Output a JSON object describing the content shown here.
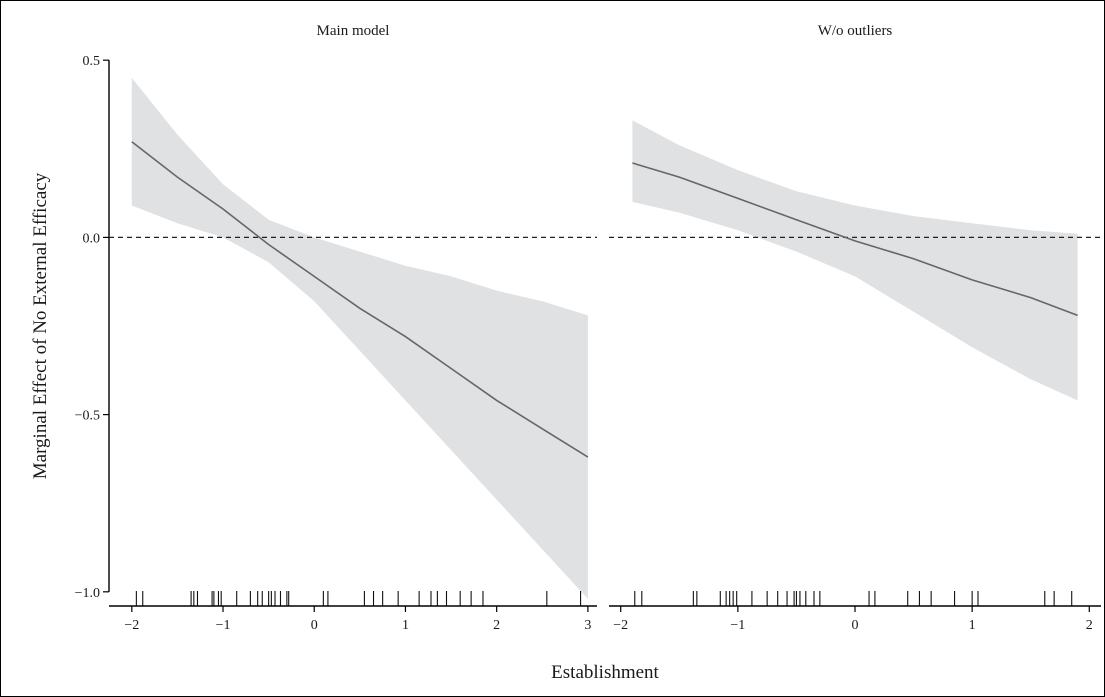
{
  "chart_data": {
    "type": "line",
    "xlabel": "Establishment",
    "ylabel": "Marginal Effect of No External Efficacy",
    "y_ticks": [
      0.5,
      0.0,
      -0.5,
      -1.0
    ],
    "y_tick_labels": [
      "0.5",
      "0.0",
      "−0.5",
      "−1.0"
    ],
    "ylim": [
      -1.04,
      0.54
    ],
    "reference_line": {
      "y": 0,
      "style": "dashed"
    },
    "colors": {
      "ribbon": "#e0e1e3",
      "line": "#666666",
      "axis": "#000000"
    },
    "panels": [
      {
        "title": "Main model",
        "xlim": [
          -2.25,
          3.1
        ],
        "x_ticks": [
          -2,
          -1,
          0,
          1,
          2,
          3
        ],
        "x_tick_labels": [
          "−2",
          "−1",
          "0",
          "1",
          "2",
          "3"
        ],
        "series": [
          {
            "x": [
              -2.0,
              -1.5,
              -1.0,
              -0.5,
              0.0,
              0.5,
              1.0,
              1.5,
              2.0,
              2.5,
              3.0
            ],
            "y": [
              0.27,
              0.17,
              0.08,
              -0.02,
              -0.11,
              -0.2,
              -0.28,
              -0.37,
              -0.46,
              -0.54,
              -0.62
            ],
            "lower": [
              0.09,
              0.04,
              0.0,
              -0.07,
              -0.18,
              -0.32,
              -0.46,
              -0.6,
              -0.74,
              -0.88,
              -1.02
            ],
            "upper": [
              0.45,
              0.29,
              0.15,
              0.05,
              0.0,
              -0.04,
              -0.08,
              -0.11,
              -0.15,
              -0.18,
              -0.22
            ]
          }
        ],
        "rug": [
          -1.95,
          -1.88,
          -1.35,
          -1.32,
          -1.28,
          -1.12,
          -1.1,
          -1.05,
          -1.02,
          -0.85,
          -0.7,
          -0.62,
          -0.57,
          -0.5,
          -0.47,
          -0.43,
          -0.37,
          -0.3,
          -0.28,
          0.1,
          0.15,
          0.55,
          0.65,
          0.75,
          0.92,
          1.15,
          1.28,
          1.35,
          1.45,
          1.6,
          1.72,
          1.85,
          2.55,
          2.92
        ]
      },
      {
        "title": "W/o outliers",
        "xlim": [
          -2.1,
          2.1
        ],
        "x_ticks": [
          -2,
          -1,
          0,
          1,
          2
        ],
        "x_tick_labels": [
          "−2",
          "−1",
          "0",
          "1",
          "2"
        ],
        "series": [
          {
            "x": [
              -1.9,
              -1.5,
              -1.0,
              -0.5,
              0.0,
              0.5,
              1.0,
              1.5,
              1.9
            ],
            "y": [
              0.21,
              0.17,
              0.11,
              0.05,
              -0.01,
              -0.06,
              -0.12,
              -0.17,
              -0.22
            ],
            "lower": [
              0.1,
              0.07,
              0.02,
              -0.04,
              -0.11,
              -0.21,
              -0.31,
              -0.4,
              -0.46
            ],
            "upper": [
              0.33,
              0.26,
              0.19,
              0.13,
              0.09,
              0.06,
              0.04,
              0.02,
              0.01
            ]
          }
        ],
        "rug": [
          -1.88,
          -1.82,
          -1.38,
          -1.35,
          -1.15,
          -1.1,
          -1.07,
          -1.04,
          -1.01,
          -0.88,
          -0.75,
          -0.66,
          -0.58,
          -0.52,
          -0.5,
          -0.47,
          -0.42,
          -0.35,
          -0.3,
          0.12,
          0.17,
          0.45,
          0.55,
          0.65,
          0.85,
          1.0,
          1.05,
          1.62,
          1.7,
          1.85
        ]
      }
    ]
  }
}
